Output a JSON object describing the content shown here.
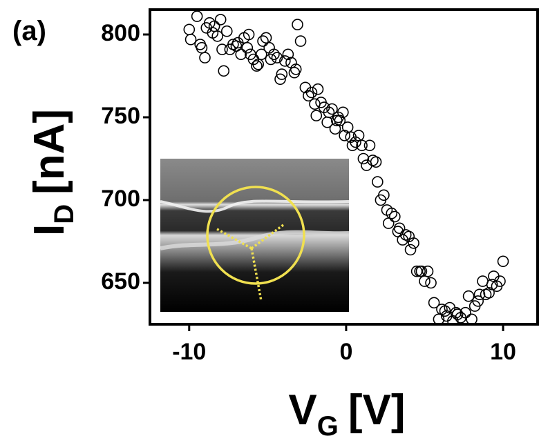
{
  "chart_data": {
    "type": "scatter",
    "panel_label": "(a)",
    "xlabel": {
      "main": "V",
      "sub": "G",
      "unit": "[V]"
    },
    "ylabel": {
      "main": "I",
      "sub": "D",
      "unit": "[nA]"
    },
    "xlim": [
      -12.5,
      12.2
    ],
    "ylim": [
      625,
      815
    ],
    "xticks": [
      -10,
      0,
      10
    ],
    "yticks": [
      650,
      700,
      750,
      800
    ],
    "color": "#000000",
    "x": [
      -10.0,
      -9.9,
      -9.5,
      -9.3,
      -9.2,
      -9.0,
      -8.9,
      -8.7,
      -8.5,
      -8.4,
      -8.2,
      -8.0,
      -7.9,
      -7.8,
      -7.6,
      -7.4,
      -7.2,
      -7.0,
      -6.9,
      -6.7,
      -6.5,
      -6.3,
      -6.2,
      -6.1,
      -5.9,
      -5.7,
      -5.6,
      -5.4,
      -5.3,
      -5.1,
      -4.9,
      -4.8,
      -4.6,
      -4.4,
      -4.2,
      -4.1,
      -3.9,
      -3.7,
      -3.5,
      -3.3,
      -3.2,
      -3.1,
      -2.9,
      -2.6,
      -2.4,
      -2.2,
      -2.0,
      -1.9,
      -1.8,
      -1.6,
      -1.4,
      -1.2,
      -1.1,
      -0.9,
      -0.7,
      -0.6,
      -0.5,
      -0.4,
      -0.2,
      -0.1,
      0.1,
      0.3,
      0.4,
      0.6,
      0.8,
      1.0,
      1.1,
      1.3,
      1.5,
      1.7,
      1.9,
      2.0,
      2.2,
      2.4,
      2.6,
      2.7,
      2.9,
      3.1,
      3.3,
      3.4,
      3.6,
      3.8,
      4.0,
      4.1,
      4.3,
      4.5,
      4.7,
      4.8,
      5.0,
      5.2,
      5.4,
      5.6,
      5.9,
      6.1,
      6.3,
      6.4,
      6.6,
      6.8,
      7.0,
      7.1,
      7.3,
      7.6,
      7.8,
      8.0,
      8.2,
      8.4,
      8.5,
      8.7,
      8.9,
      9.1,
      9.3,
      9.4,
      9.6,
      9.8,
      10.0
    ],
    "values": [
      803,
      797,
      811,
      794,
      792,
      786,
      804,
      807,
      801,
      805,
      799,
      809,
      791,
      778,
      802,
      791,
      794,
      793,
      795,
      788,
      798,
      792,
      800,
      788,
      785,
      781,
      782,
      788,
      796,
      798,
      792,
      785,
      788,
      786,
      773,
      776,
      784,
      788,
      783,
      777,
      779,
      806,
      796,
      768,
      763,
      765,
      758,
      751,
      767,
      759,
      756,
      747,
      753,
      755,
      743,
      748,
      750,
      748,
      753,
      739,
      744,
      738,
      733,
      735,
      739,
      733,
      725,
      721,
      733,
      724,
      723,
      711,
      700,
      703,
      694,
      686,
      692,
      690,
      681,
      683,
      676,
      679,
      678,
      670,
      674,
      657,
      657,
      657,
      651,
      657,
      650,
      638,
      628,
      634,
      633,
      630,
      635,
      627,
      632,
      631,
      629,
      632,
      642,
      628,
      636,
      639,
      643,
      651,
      643,
      644,
      649,
      654,
      648,
      651,
      663
    ]
  }
}
